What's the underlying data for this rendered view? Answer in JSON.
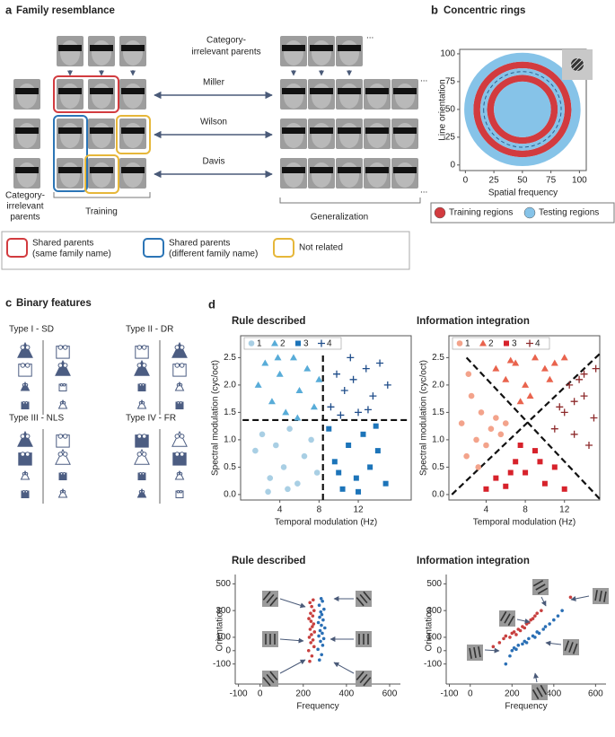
{
  "panel_a": {
    "letter": "a",
    "title": "Family resemblance",
    "top_label": [
      "Category-",
      "irrelevant parents"
    ],
    "names": [
      "Miller",
      "Wilson",
      "Davis"
    ],
    "left_label": [
      "Category-",
      "irrelevant",
      "parents"
    ],
    "training": "Training",
    "generalization": "Generalization",
    "ellipsis": "...",
    "legend": [
      {
        "lines": [
          "Shared parents",
          "(same family name)"
        ],
        "color": "#d23b3f"
      },
      {
        "lines": [
          "Shared parents",
          "(different family name)"
        ],
        "color": "#2c75b6"
      },
      {
        "lines": [
          "Not related"
        ],
        "color": "#e6b73a"
      }
    ]
  },
  "panel_b": {
    "letter": "b"
  },
  "panel_c": {
    "letter": "c",
    "title": "Binary features",
    "types": [
      "Type I - SD",
      "Type II - DR",
      "Type III - NLS",
      "Type IV - FR"
    ]
  },
  "panel_d": {
    "letter": "d"
  },
  "chart_data": [
    {
      "type": "rings",
      "title": "Concentric rings",
      "xlabel": "Spatial frequency",
      "ylabel": "Line orientation",
      "frame": "box",
      "xlim": [
        -5,
        106
      ],
      "ylim": [
        -5,
        104
      ],
      "xticks": [
        0,
        25,
        50,
        75,
        100
      ],
      "yticks": [
        0,
        25,
        50,
        75,
        100
      ],
      "center": [
        50,
        50
      ],
      "dashed_radius": 34,
      "legend": "bottom",
      "series": [
        {
          "name": "Training regions",
          "color": "#d23b3f",
          "bands": [
            [
              37,
              43
            ],
            [
              25,
              31
            ]
          ]
        },
        {
          "name": "Testing regions",
          "color": "#86c3e8",
          "bands": [
            [
              43,
              51
            ],
            [
              31,
              37
            ],
            [
              0,
              25
            ]
          ]
        }
      ]
    },
    {
      "type": "scatter",
      "title": "Rule described",
      "xlabel": "Temporal modulation (Hz)",
      "ylabel": "Spectral modulation (cyc/oct)",
      "frame": "box",
      "legend": "top",
      "xlim": [
        0,
        17.4
      ],
      "ylim": [
        -0.1,
        2.9
      ],
      "xticks": [
        4,
        8,
        12
      ],
      "yticks": [
        {
          "value": 0,
          "label": "0.0"
        },
        0.5,
        {
          "value": 1,
          "label": "1.0"
        },
        1.5,
        {
          "value": 2,
          "label": "2.0"
        },
        2.5
      ],
      "boundaries": [
        [
          [
            8.4,
            -0.1
          ],
          [
            8.4,
            2.6
          ]
        ],
        [
          [
            0.2,
            1.36
          ],
          [
            17.2,
            1.36
          ]
        ]
      ],
      "series": [
        {
          "name": "1",
          "color": "#a9cfe4",
          "marker": "circle",
          "x": [
            1.5,
            2.2,
            3,
            3.6,
            4.4,
            5,
            5.8,
            6.5,
            7.2,
            2.8,
            4.8,
            7.8
          ],
          "y": [
            0.8,
            1.1,
            0.3,
            0.9,
            0.5,
            1.2,
            0.2,
            0.7,
            1.0,
            0.05,
            0.1,
            0.4
          ]
        },
        {
          "name": "2",
          "color": "#58acd8",
          "marker": "triangle",
          "x": [
            1.8,
            2.5,
            3.2,
            4,
            4.6,
            5.4,
            6,
            6.8,
            7.5,
            3.8,
            5.8,
            8
          ],
          "y": [
            2.0,
            2.4,
            1.7,
            2.2,
            1.5,
            2.5,
            1.9,
            2.3,
            1.6,
            2.5,
            1.4,
            2.1
          ]
        },
        {
          "name": "3",
          "color": "#1c74b9",
          "marker": "square",
          "x": [
            9,
            9.6,
            10.4,
            11,
            11.8,
            12.5,
            13.2,
            14,
            14.8,
            10,
            12,
            13.8
          ],
          "y": [
            1.2,
            0.6,
            0.1,
            0.9,
            0.3,
            1.1,
            0.5,
            0.8,
            0.2,
            0.4,
            0.05,
            1.25
          ]
        },
        {
          "name": "4",
          "color": "#1f4d8a",
          "marker": "plus",
          "x": [
            9.2,
            9.8,
            10.6,
            11.2,
            12,
            12.8,
            13.5,
            14.2,
            15,
            10.2,
            11.5,
            13
          ],
          "y": [
            1.6,
            2.2,
            1.9,
            2.5,
            1.5,
            2.3,
            1.8,
            2.4,
            2.0,
            1.45,
            2.1,
            1.55
          ]
        }
      ]
    },
    {
      "type": "scatter",
      "title": "Information integration",
      "xlabel": "Temporal modulation (Hz)",
      "ylabel": "Spectral modulation (cyc/oct)",
      "frame": "box",
      "legend": "top",
      "xlim": [
        0.2,
        15.6
      ],
      "ylim": [
        -0.1,
        2.9
      ],
      "xticks": [
        4,
        8,
        12
      ],
      "yticks": [
        {
          "value": 0,
          "label": "0.0"
        },
        0.5,
        {
          "value": 1,
          "label": "1.0"
        },
        1.5,
        {
          "value": 2,
          "label": "2.0"
        },
        2.5
      ],
      "boundaries": [
        [
          [
            0.5,
            0
          ],
          [
            15.6,
            2.57
          ]
        ],
        [
          [
            2,
            2.5
          ],
          [
            15.6,
            -0.08
          ]
        ]
      ],
      "series": [
        {
          "name": "1",
          "color": "#f3a38b",
          "marker": "circle",
          "x": [
            1.5,
            2,
            2.5,
            3,
            3.5,
            4,
            4.5,
            5,
            2.2,
            3.2,
            5.5,
            6
          ],
          "y": [
            1.3,
            0.7,
            1.8,
            1.0,
            1.5,
            0.9,
            1.2,
            1.4,
            2.2,
            0.5,
            1.1,
            1.3
          ]
        },
        {
          "name": "2",
          "color": "#e9634d",
          "marker": "triangle",
          "x": [
            5,
            6,
            7,
            8,
            9,
            10,
            11,
            12,
            6.5,
            8.5,
            10.5,
            7.5
          ],
          "y": [
            2.3,
            2.1,
            2.4,
            2.0,
            2.5,
            2.3,
            2.4,
            2.5,
            2.45,
            1.8,
            2.1,
            1.7
          ]
        },
        {
          "name": "3",
          "color": "#d7222b",
          "marker": "square",
          "x": [
            4,
            5,
            6,
            7,
            8,
            9,
            10,
            11,
            12,
            7.5,
            9.5,
            6.5
          ],
          "y": [
            0.1,
            0.3,
            0.15,
            0.6,
            0.4,
            0.8,
            0.2,
            0.5,
            0.1,
            0.9,
            0.6,
            0.4
          ]
        },
        {
          "name": "4",
          "color": "#8e2b2c",
          "marker": "plus",
          "x": [
            11,
            12,
            13,
            14,
            15,
            12.5,
            13.5,
            14.5,
            11.5,
            15.2,
            13,
            14
          ],
          "y": [
            1.2,
            1.5,
            1.1,
            1.8,
            1.4,
            2.0,
            2.1,
            0.9,
            1.6,
            2.3,
            1.7,
            2.2
          ]
        }
      ]
    },
    {
      "type": "scatter",
      "title": "Rule described",
      "xlabel": "Frequency",
      "ylabel": "Orientation",
      "frame": "open",
      "xlim": [
        -115,
        650
      ],
      "ylim": [
        -250,
        570
      ],
      "xticks": [
        -100,
        0,
        200,
        400,
        600
      ],
      "yticks": [
        -100,
        0,
        100,
        300,
        500
      ],
      "series": [
        {
          "color": "#c8403f",
          "marker": "dot",
          "x": [
            230,
            240,
            225,
            250,
            235,
            245,
            228,
            238,
            252,
            232,
            242,
            248,
            236,
            226,
            244,
            234,
            250,
            239,
            231,
            246
          ],
          "y": [
            -80,
            -40,
            0,
            30,
            60,
            80,
            100,
            120,
            140,
            160,
            180,
            200,
            220,
            240,
            260,
            280,
            300,
            330,
            360,
            380
          ]
        },
        {
          "color": "#2a6fb5",
          "marker": "dot",
          "x": [
            275,
            285,
            268,
            290,
            280,
            295,
            272,
            288,
            278,
            300,
            284,
            270,
            292,
            276,
            286,
            281,
            296,
            274,
            289,
            283
          ],
          "y": [
            -70,
            -30,
            10,
            40,
            70,
            90,
            110,
            130,
            150,
            170,
            190,
            210,
            230,
            250,
            270,
            290,
            310,
            340,
            370,
            390
          ]
        }
      ]
    },
    {
      "type": "scatter",
      "title": "Information integration",
      "xlabel": "Frequency",
      "ylabel": "Orientation",
      "frame": "open",
      "xlim": [
        -115,
        650
      ],
      "ylim": [
        -250,
        570
      ],
      "xticks": [
        -100,
        0,
        200,
        400,
        600
      ],
      "yticks": [
        -100,
        0,
        100,
        300,
        500
      ],
      "series": [
        {
          "color": "#c8403f",
          "marker": "dot",
          "x": [
            110,
            140,
            160,
            170,
            190,
            200,
            210,
            220,
            230,
            240,
            250,
            260,
            270,
            280,
            290,
            300,
            310,
            320,
            340,
            480
          ],
          "y": [
            30,
            60,
            90,
            110,
            100,
            130,
            140,
            120,
            160,
            150,
            180,
            170,
            200,
            210,
            230,
            240,
            260,
            280,
            300,
            400
          ]
        },
        {
          "color": "#2a6fb5",
          "marker": "dot",
          "x": [
            170,
            190,
            200,
            210,
            220,
            230,
            250,
            260,
            270,
            280,
            300,
            310,
            320,
            330,
            350,
            360,
            380,
            400,
            420,
            440
          ],
          "y": [
            -100,
            -40,
            0,
            20,
            10,
            40,
            50,
            70,
            60,
            90,
            110,
            100,
            140,
            130,
            160,
            180,
            200,
            230,
            260,
            300
          ]
        }
      ]
    }
  ]
}
